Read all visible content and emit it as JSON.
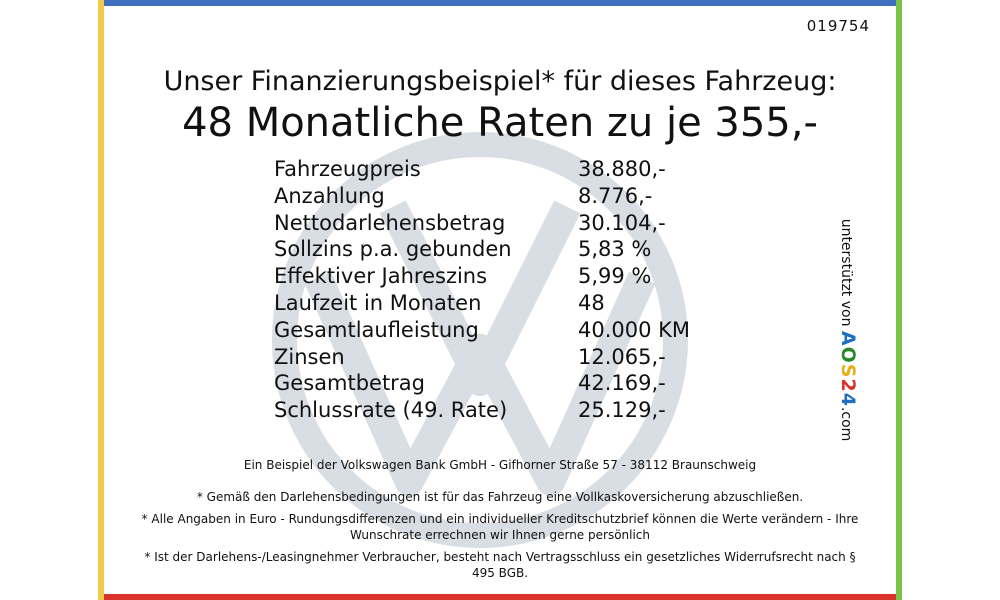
{
  "colors": {
    "top": "#3f6fbf",
    "bottom": "#d8322a",
    "left": "#f1c94b",
    "right": "#7ec24a",
    "watermark": "#d9dde4"
  },
  "ref_number": "019754",
  "headline1": "Unser Finanzierungsbeispiel* für dieses Fahrzeug:",
  "headline2": "48 Monatliche Raten zu je 355,-",
  "rows": [
    {
      "label": "Fahrzeugpreis",
      "value": "38.880,-"
    },
    {
      "label": "Anzahlung",
      "value": "8.776,-"
    },
    {
      "label": "Nettodarlehensbetrag",
      "value": "30.104,-"
    },
    {
      "label": "Sollzins p.a. gebunden",
      "value": "5,83 %"
    },
    {
      "label": "Effektiver Jahreszins",
      "value": "5,99 %"
    },
    {
      "label": "Laufzeit in Monaten",
      "value": "48"
    },
    {
      "label": "Gesamtlaufleistung",
      "value": "40.000 KM"
    },
    {
      "label": "Zinsen",
      "value": "12.065,-"
    },
    {
      "label": "Gesamtbetrag",
      "value": "42.169,-"
    },
    {
      "label": "Schlussrate (49. Rate)",
      "value": "25.129,-"
    }
  ],
  "bank_line": "Ein Beispiel der Volkswagen Bank GmbH - Gifhorner Straße 57 - 38112 Braunschweig",
  "notes": [
    "* Gemäß den Darlehensbedingungen ist für das Fahrzeug eine Vollkaskoversicherung abzuschließen.",
    "* Alle Angaben in Euro - Rundungsdifferenzen und ein individueller Kreditschutzbrief können die Werte verändern - Ihre Wunschrate errechnen wir Ihnen gerne persönlich",
    "* Ist der Darlehens-/Leasingnehmer Verbraucher, besteht nach Vertragsschluss ein gesetzliches Widerrufsrecht nach § 495 BGB."
  ],
  "badge": {
    "prefix": "unterstützt von",
    "logo_letters": [
      "A",
      "O",
      "S",
      "2",
      "4"
    ],
    "suffix": ".com"
  },
  "watermark_icon": "vw-logo-icon"
}
